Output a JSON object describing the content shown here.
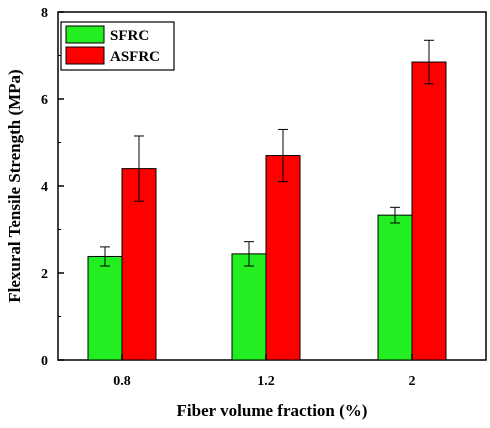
{
  "chart_data": {
    "type": "bar",
    "xlabel": "Fiber volume fraction (%)",
    "ylabel": "Flexural Tensile Strength (MPa)",
    "categories": [
      "0.8",
      "1.2",
      "2"
    ],
    "ylim": [
      0,
      8
    ],
    "yticks": [
      "0",
      "2",
      "4",
      "6",
      "8"
    ],
    "legend_position": "top-left",
    "grid": false,
    "series": [
      {
        "name": "SFRC",
        "color": "#22ee22",
        "values": [
          2.38,
          2.44,
          3.33
        ],
        "errors": [
          0.22,
          0.28,
          0.18
        ]
      },
      {
        "name": "ASFRC",
        "color": "#ff0000",
        "values": [
          4.4,
          4.7,
          6.85
        ],
        "errors": [
          0.75,
          0.6,
          0.5
        ]
      }
    ]
  }
}
